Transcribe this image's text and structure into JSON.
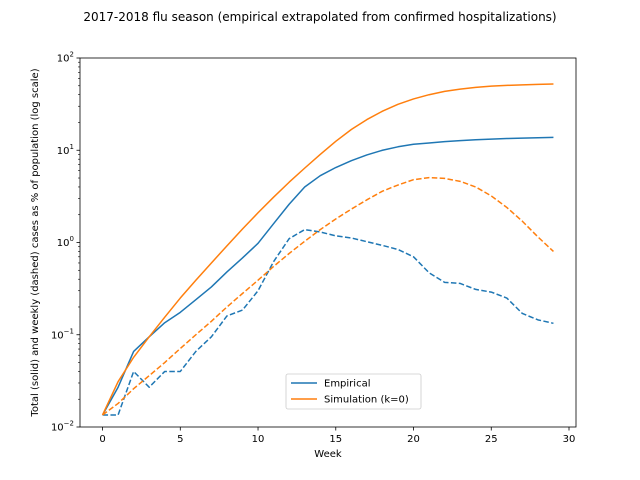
{
  "chart_data": {
    "type": "line",
    "title": "2017-2018 flu season (empirical extrapolated from confirmed hospitalizations)",
    "xlabel": "Week",
    "ylabel": "Total (solid) and weekly (dashed) cases as % of population (log scale)",
    "yscale": "log",
    "xlim": [
      -1.45,
      30.45
    ],
    "ylim": [
      0.01,
      100
    ],
    "xticks": [
      0,
      5,
      10,
      15,
      20,
      25,
      30
    ],
    "yticks": [
      0.01,
      0.1,
      1,
      10,
      100
    ],
    "ytick_labels": [
      {
        "base": "10",
        "exp": "−2"
      },
      {
        "base": "10",
        "exp": "−1"
      },
      {
        "base": "10",
        "exp": "0"
      },
      {
        "base": "10",
        "exp": "1"
      },
      {
        "base": "10",
        "exp": "2"
      }
    ],
    "grid": false,
    "legend_position": "lower-center",
    "legend": [
      {
        "label": "Empirical",
        "color": "#1f77b4"
      },
      {
        "label": "Simulation (k=0)",
        "color": "#ff7f0e"
      }
    ],
    "series": [
      {
        "name": "Empirical",
        "style": "solid",
        "color": "#1f77b4",
        "x": [
          0,
          1,
          2,
          3,
          4,
          5,
          6,
          7,
          8,
          9,
          10,
          11,
          12,
          13,
          14,
          15,
          16,
          17,
          18,
          19,
          20,
          21,
          22,
          23,
          24,
          25,
          26,
          27,
          28,
          29
        ],
        "y": [
          0.0135,
          0.027,
          0.066,
          0.095,
          0.135,
          0.175,
          0.24,
          0.33,
          0.48,
          0.68,
          0.98,
          1.6,
          2.6,
          4.0,
          5.3,
          6.5,
          7.7,
          8.9,
          10.0,
          10.9,
          11.6,
          12.0,
          12.4,
          12.7,
          13.0,
          13.2,
          13.4,
          13.55,
          13.65,
          13.8
        ]
      },
      {
        "name": "Empirical",
        "style": "dashed",
        "color": "#1f77b4",
        "x": [
          0,
          1,
          2,
          3,
          4,
          5,
          6,
          7,
          8,
          9,
          10,
          11,
          12,
          13,
          14,
          15,
          16,
          17,
          18,
          19,
          20,
          21,
          22,
          23,
          24,
          25,
          26,
          27,
          28,
          29
        ],
        "y": [
          0.0135,
          0.0135,
          0.04,
          0.027,
          0.04,
          0.04,
          0.066,
          0.095,
          0.16,
          0.185,
          0.3,
          0.62,
          1.1,
          1.38,
          1.3,
          1.18,
          1.12,
          1.02,
          0.93,
          0.84,
          0.7,
          0.47,
          0.37,
          0.36,
          0.31,
          0.29,
          0.25,
          0.17,
          0.145,
          0.133
        ]
      },
      {
        "name": "Simulation (k=0)",
        "style": "solid",
        "color": "#ff7f0e",
        "x": [
          0,
          1,
          2,
          3,
          4,
          5,
          6,
          7,
          8,
          9,
          10,
          11,
          12,
          13,
          14,
          15,
          16,
          17,
          18,
          19,
          20,
          21,
          22,
          23,
          24,
          25,
          26,
          27,
          28,
          29
        ],
        "y": [
          0.0135,
          0.031,
          0.057,
          0.095,
          0.155,
          0.25,
          0.39,
          0.6,
          0.92,
          1.4,
          2.1,
          3.1,
          4.5,
          6.4,
          9.0,
          12.5,
          16.8,
          21.5,
          26.5,
          31.5,
          36.0,
          40.0,
          43.5,
          46.0,
          48.0,
          49.5,
          50.5,
          51.2,
          51.8,
          52.2
        ]
      },
      {
        "name": "Simulation (k=0)",
        "style": "dashed",
        "color": "#ff7f0e",
        "x": [
          0,
          1,
          2,
          3,
          4,
          5,
          6,
          7,
          8,
          9,
          10,
          11,
          12,
          13,
          14,
          15,
          16,
          17,
          18,
          19,
          20,
          21,
          22,
          23,
          24,
          25,
          26,
          27,
          28,
          29
        ],
        "y": [
          0.0135,
          0.018,
          0.026,
          0.036,
          0.05,
          0.071,
          0.1,
          0.14,
          0.2,
          0.28,
          0.39,
          0.55,
          0.76,
          1.03,
          1.38,
          1.8,
          2.3,
          2.9,
          3.6,
          4.2,
          4.8,
          5.05,
          4.95,
          4.6,
          4.0,
          3.2,
          2.4,
          1.7,
          1.15,
          0.8
        ]
      }
    ]
  }
}
